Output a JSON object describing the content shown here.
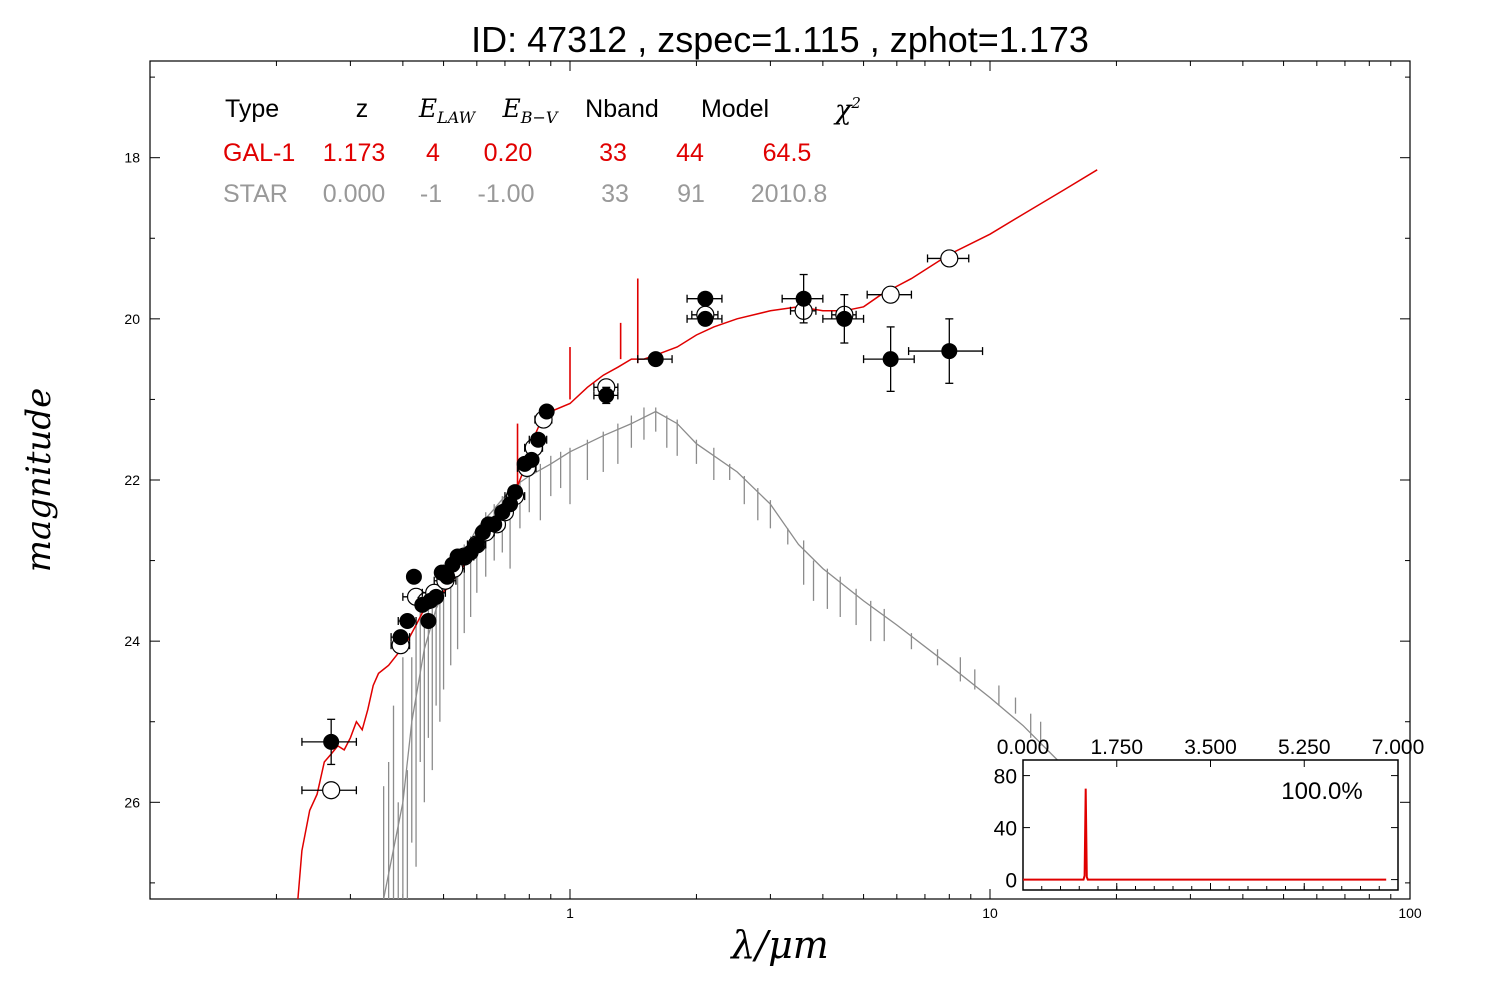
{
  "title": "ID:  47312 , zspec=1.115 , zphot=1.173",
  "xlabel": "λ/μm",
  "ylabel": "magnitude",
  "fit_table": {
    "headers": [
      "Type",
      "z",
      "E_LAW",
      "E_B-V",
      "Nband",
      "Model",
      "χ2"
    ],
    "rows": [
      {
        "name": "galaxy",
        "color": "#e00000",
        "cells": [
          "GAL-1",
          "1.173",
          "4",
          "0.20",
          "33",
          "44",
          "64.5"
        ]
      },
      {
        "name": "star",
        "color": "#999999",
        "cells": [
          "STAR",
          "0.000",
          "-1",
          "-1.00",
          "33",
          "91",
          "2010.8"
        ]
      }
    ]
  },
  "chart_data": [
    {
      "type": "scatter",
      "x_scale": "log",
      "xlim": [
        0.1,
        100
      ],
      "ylim": [
        27.2,
        16.8
      ],
      "y_inverted": true,
      "xticks": [
        {
          "value": 1,
          "label": "1"
        },
        {
          "value": 10,
          "label": "10"
        },
        {
          "value": 100,
          "label": "100"
        }
      ],
      "yticks": [
        {
          "value": 18,
          "label": "18"
        },
        {
          "value": 20,
          "label": "20"
        },
        {
          "value": 22,
          "label": "22"
        },
        {
          "value": 24,
          "label": "24"
        },
        {
          "value": 26,
          "label": "26"
        }
      ],
      "colors": {
        "galaxy_model": "#e00000",
        "star_model": "#8c8c8c",
        "points": "#000000"
      },
      "galaxy_model": [
        [
          0.225,
          27.2
        ],
        [
          0.23,
          26.6
        ],
        [
          0.24,
          26.1
        ],
        [
          0.25,
          25.9
        ],
        [
          0.26,
          25.5
        ],
        [
          0.27,
          25.4
        ],
        [
          0.28,
          25.3
        ],
        [
          0.29,
          25.35
        ],
        [
          0.3,
          25.2
        ],
        [
          0.31,
          25.0
        ],
        [
          0.32,
          25.1
        ],
        [
          0.33,
          24.85
        ],
        [
          0.34,
          24.55
        ],
        [
          0.35,
          24.4
        ],
        [
          0.37,
          24.3
        ],
        [
          0.39,
          24.15
        ],
        [
          0.41,
          24.0
        ],
        [
          0.43,
          23.8
        ],
        [
          0.45,
          23.6
        ],
        [
          0.48,
          23.45
        ],
        [
          0.51,
          23.35
        ],
        [
          0.55,
          23.1
        ],
        [
          0.6,
          22.9
        ],
        [
          0.65,
          22.6
        ],
        [
          0.7,
          22.4
        ],
        [
          0.74,
          22.15
        ],
        [
          0.78,
          21.85
        ],
        [
          0.8,
          21.6
        ],
        [
          0.84,
          21.35
        ],
        [
          0.9,
          21.15
        ],
        [
          1.0,
          21.05
        ],
        [
          1.1,
          20.85
        ],
        [
          1.2,
          20.7
        ],
        [
          1.3,
          20.6
        ],
        [
          1.4,
          20.5
        ],
        [
          1.5,
          20.5
        ],
        [
          1.6,
          20.45
        ],
        [
          1.8,
          20.35
        ],
        [
          2.0,
          20.2
        ],
        [
          2.2,
          20.1
        ],
        [
          2.5,
          20.0
        ],
        [
          3.0,
          19.9
        ],
        [
          3.5,
          19.85
        ],
        [
          4.0,
          19.9
        ],
        [
          4.5,
          19.9
        ],
        [
          5.0,
          19.85
        ],
        [
          5.5,
          19.7
        ],
        [
          6.5,
          19.5
        ],
        [
          8.0,
          19.2
        ],
        [
          10.0,
          18.95
        ],
        [
          12.0,
          18.7
        ],
        [
          15.0,
          18.4
        ],
        [
          18.0,
          18.15
        ]
      ],
      "galaxy_lines": [
        [
          0.75,
          22.3,
          21.3
        ],
        [
          1.0,
          21.0,
          20.35
        ],
        [
          1.32,
          20.5,
          20.05
        ],
        [
          1.45,
          20.55,
          19.5
        ]
      ],
      "star_model": [
        [
          0.36,
          27.2
        ],
        [
          0.4,
          26.0
        ],
        [
          0.42,
          25.0
        ],
        [
          0.45,
          24.1
        ],
        [
          0.48,
          23.6
        ],
        [
          0.52,
          23.2
        ],
        [
          0.56,
          22.9
        ],
        [
          0.6,
          22.6
        ],
        [
          0.65,
          22.4
        ],
        [
          0.7,
          22.2
        ],
        [
          0.75,
          22.05
        ],
        [
          0.8,
          21.95
        ],
        [
          0.9,
          21.8
        ],
        [
          1.0,
          21.65
        ],
        [
          1.2,
          21.45
        ],
        [
          1.4,
          21.3
        ],
        [
          1.6,
          21.15
        ],
        [
          1.8,
          21.3
        ],
        [
          2.0,
          21.55
        ],
        [
          2.5,
          21.9
        ],
        [
          3.0,
          22.3
        ],
        [
          3.5,
          22.8
        ],
        [
          4.0,
          23.1
        ],
        [
          5.0,
          23.5
        ],
        [
          6.0,
          23.8
        ],
        [
          8.0,
          24.3
        ],
        [
          10.0,
          24.7
        ],
        [
          12.0,
          25.05
        ],
        [
          14.0,
          25.4
        ],
        [
          16.0,
          25.7
        ]
      ],
      "star_lines": [
        [
          0.36,
          27.2,
          25.8
        ],
        [
          0.37,
          27.2,
          25.5
        ],
        [
          0.38,
          27.2,
          24.8
        ],
        [
          0.39,
          27.2,
          26.0
        ],
        [
          0.4,
          27.2,
          24.2
        ],
        [
          0.41,
          27.2,
          25.6
        ],
        [
          0.42,
          26.5,
          24.2
        ],
        [
          0.43,
          26.8,
          23.8
        ],
        [
          0.44,
          25.5,
          23.6
        ],
        [
          0.45,
          26.0,
          23.8
        ],
        [
          0.46,
          25.2,
          23.5
        ],
        [
          0.47,
          25.6,
          23.6
        ],
        [
          0.48,
          24.8,
          23.4
        ],
        [
          0.49,
          25.0,
          23.4
        ],
        [
          0.5,
          24.6,
          23.3
        ],
        [
          0.52,
          24.3,
          23.1
        ],
        [
          0.54,
          24.1,
          23.0
        ],
        [
          0.56,
          23.9,
          22.8
        ],
        [
          0.58,
          23.7,
          22.7
        ],
        [
          0.6,
          23.4,
          22.6
        ],
        [
          0.63,
          23.2,
          22.4
        ],
        [
          0.66,
          23.0,
          22.3
        ],
        [
          0.69,
          22.9,
          22.2
        ],
        [
          0.72,
          23.1,
          22.1
        ],
        [
          0.76,
          22.6,
          22.0
        ],
        [
          0.8,
          22.4,
          21.9
        ],
        [
          0.85,
          22.5,
          21.8
        ],
        [
          0.9,
          22.2,
          21.7
        ],
        [
          0.95,
          22.1,
          21.65
        ],
        [
          1.0,
          22.3,
          21.6
        ],
        [
          1.1,
          22.0,
          21.5
        ],
        [
          1.2,
          21.9,
          21.4
        ],
        [
          1.3,
          21.8,
          21.3
        ],
        [
          1.4,
          21.6,
          21.2
        ],
        [
          1.5,
          21.5,
          21.1
        ],
        [
          1.6,
          21.4,
          21.1
        ],
        [
          1.7,
          21.6,
          21.2
        ],
        [
          1.8,
          21.7,
          21.25
        ],
        [
          2.0,
          21.8,
          21.5
        ],
        [
          2.2,
          22.0,
          21.6
        ],
        [
          2.4,
          22.0,
          21.8
        ],
        [
          2.6,
          22.3,
          21.95
        ],
        [
          2.8,
          22.5,
          22.1
        ],
        [
          3.0,
          22.6,
          22.25
        ],
        [
          3.3,
          22.8,
          22.6
        ],
        [
          3.6,
          23.3,
          22.75
        ],
        [
          3.8,
          23.5,
          23.0
        ],
        [
          4.1,
          23.6,
          23.1
        ],
        [
          4.4,
          23.7,
          23.2
        ],
        [
          4.8,
          23.8,
          23.35
        ],
        [
          5.2,
          24.0,
          23.5
        ],
        [
          5.6,
          24.0,
          23.6
        ],
        [
          6.5,
          24.1,
          23.9
        ],
        [
          7.5,
          24.3,
          24.1
        ],
        [
          8.5,
          24.5,
          24.2
        ],
        [
          9.2,
          24.6,
          24.35
        ],
        [
          10.5,
          24.8,
          24.55
        ],
        [
          11.5,
          24.9,
          24.7
        ],
        [
          12.5,
          25.2,
          24.9
        ],
        [
          13.2,
          25.3,
          25.0
        ]
      ],
      "model_points": [
        [
          0.27,
          25.85,
          0.04
        ],
        [
          0.395,
          24.05,
          0.02
        ],
        [
          0.43,
          23.45,
          0.03
        ],
        [
          0.455,
          23.5,
          0.02
        ],
        [
          0.475,
          23.4,
          0.03
        ],
        [
          0.505,
          23.25,
          0.03
        ],
        [
          0.53,
          23.1,
          0.03
        ],
        [
          0.56,
          22.95,
          0.03
        ],
        [
          0.6,
          22.8,
          0.03
        ],
        [
          0.63,
          22.65,
          0.03
        ],
        [
          0.67,
          22.55,
          0.03
        ],
        [
          0.7,
          22.4,
          0.03
        ],
        [
          0.74,
          22.2,
          0.04
        ],
        [
          0.79,
          21.85,
          0.04
        ],
        [
          0.82,
          21.6,
          0.04
        ],
        [
          0.865,
          21.25,
          0.04
        ],
        [
          1.22,
          20.85,
          0.08
        ],
        [
          2.1,
          19.95,
          0.15
        ],
        [
          3.6,
          19.9,
          0.25
        ],
        [
          4.5,
          19.95,
          0.3
        ],
        [
          5.8,
          19.7,
          0.7
        ],
        [
          8.0,
          19.25,
          0.9
        ]
      ],
      "observed_points": [
        {
          "x": 0.27,
          "y": 25.25,
          "xerr": 0.04,
          "yerr": 0.28
        },
        {
          "x": 0.395,
          "y": 23.95,
          "xerr": 0.02,
          "yerr": 0.05
        },
        {
          "x": 0.41,
          "y": 23.75,
          "xerr": 0.02,
          "yerr": 0.05
        },
        {
          "x": 0.425,
          "y": 23.2,
          "xerr": 0.01,
          "yerr": 0.04
        },
        {
          "x": 0.445,
          "y": 23.55,
          "xerr": 0.01,
          "yerr": 0.04
        },
        {
          "x": 0.46,
          "y": 23.75,
          "xerr": 0.01,
          "yerr": 0.04
        },
        {
          "x": 0.465,
          "y": 23.5,
          "xerr": 0.01,
          "yerr": 0.04
        },
        {
          "x": 0.48,
          "y": 23.45,
          "xerr": 0.01,
          "yerr": 0.04
        },
        {
          "x": 0.495,
          "y": 23.15,
          "xerr": 0.01,
          "yerr": 0.04
        },
        {
          "x": 0.51,
          "y": 23.2,
          "xerr": 0.01,
          "yerr": 0.04
        },
        {
          "x": 0.525,
          "y": 23.05,
          "xerr": 0.01,
          "yerr": 0.04
        },
        {
          "x": 0.54,
          "y": 22.95,
          "xerr": 0.01,
          "yerr": 0.04
        },
        {
          "x": 0.56,
          "y": 22.95,
          "xerr": 0.01,
          "yerr": 0.04
        },
        {
          "x": 0.58,
          "y": 22.9,
          "xerr": 0.01,
          "yerr": 0.04
        },
        {
          "x": 0.6,
          "y": 22.8,
          "xerr": 0.01,
          "yerr": 0.04
        },
        {
          "x": 0.62,
          "y": 22.65,
          "xerr": 0.01,
          "yerr": 0.04
        },
        {
          "x": 0.64,
          "y": 22.55,
          "xerr": 0.01,
          "yerr": 0.04
        },
        {
          "x": 0.66,
          "y": 22.55,
          "xerr": 0.01,
          "yerr": 0.04
        },
        {
          "x": 0.69,
          "y": 22.4,
          "xerr": 0.01,
          "yerr": 0.04
        },
        {
          "x": 0.72,
          "y": 22.3,
          "xerr": 0.01,
          "yerr": 0.04
        },
        {
          "x": 0.74,
          "y": 22.15,
          "xerr": 0.01,
          "yerr": 0.04
        },
        {
          "x": 0.78,
          "y": 21.8,
          "xerr": 0.02,
          "yerr": 0.04
        },
        {
          "x": 0.81,
          "y": 21.75,
          "xerr": 0.02,
          "yerr": 0.04
        },
        {
          "x": 0.84,
          "y": 21.5,
          "xerr": 0.04,
          "yerr": 0.05
        },
        {
          "x": 0.88,
          "y": 21.15,
          "xerr": 0.02,
          "yerr": 0.05
        },
        {
          "x": 1.22,
          "y": 20.95,
          "xerr": 0.08,
          "yerr": 0.1
        },
        {
          "x": 1.6,
          "y": 20.5,
          "xerr": 0.15,
          "yerr": 0.05
        },
        {
          "x": 2.1,
          "y": 19.75,
          "xerr": 0.2,
          "yerr": 0.08
        },
        {
          "x": 2.1,
          "y": 20.0,
          "xerr": 0.2,
          "yerr": 0.08
        },
        {
          "x": 3.6,
          "y": 19.75,
          "xerr": 0.4,
          "yerr": 0.3
        },
        {
          "x": 4.5,
          "y": 20.0,
          "xerr": 0.5,
          "yerr": 0.3
        },
        {
          "x": 5.8,
          "y": 20.5,
          "xerr": 0.8,
          "yerr": 0.4
        },
        {
          "x": 8.0,
          "y": 20.4,
          "xerr": 1.6,
          "yerr": 0.4
        }
      ]
    },
    {
      "type": "line",
      "inset": true,
      "label": "100.0%",
      "xlim": [
        0.0,
        7.0
      ],
      "ylim": [
        -8,
        92
      ],
      "xticks": [
        "0.000",
        "1.750",
        "3.500",
        "5.250",
        "7.000"
      ],
      "yticks": [
        0,
        40,
        80
      ],
      "color": "#e00000",
      "pdf": [
        [
          0.0,
          0
        ],
        [
          1.13,
          0
        ],
        [
          1.15,
          3
        ],
        [
          1.17,
          70
        ],
        [
          1.19,
          2
        ],
        [
          1.21,
          0
        ],
        [
          6.78,
          0
        ]
      ]
    }
  ]
}
